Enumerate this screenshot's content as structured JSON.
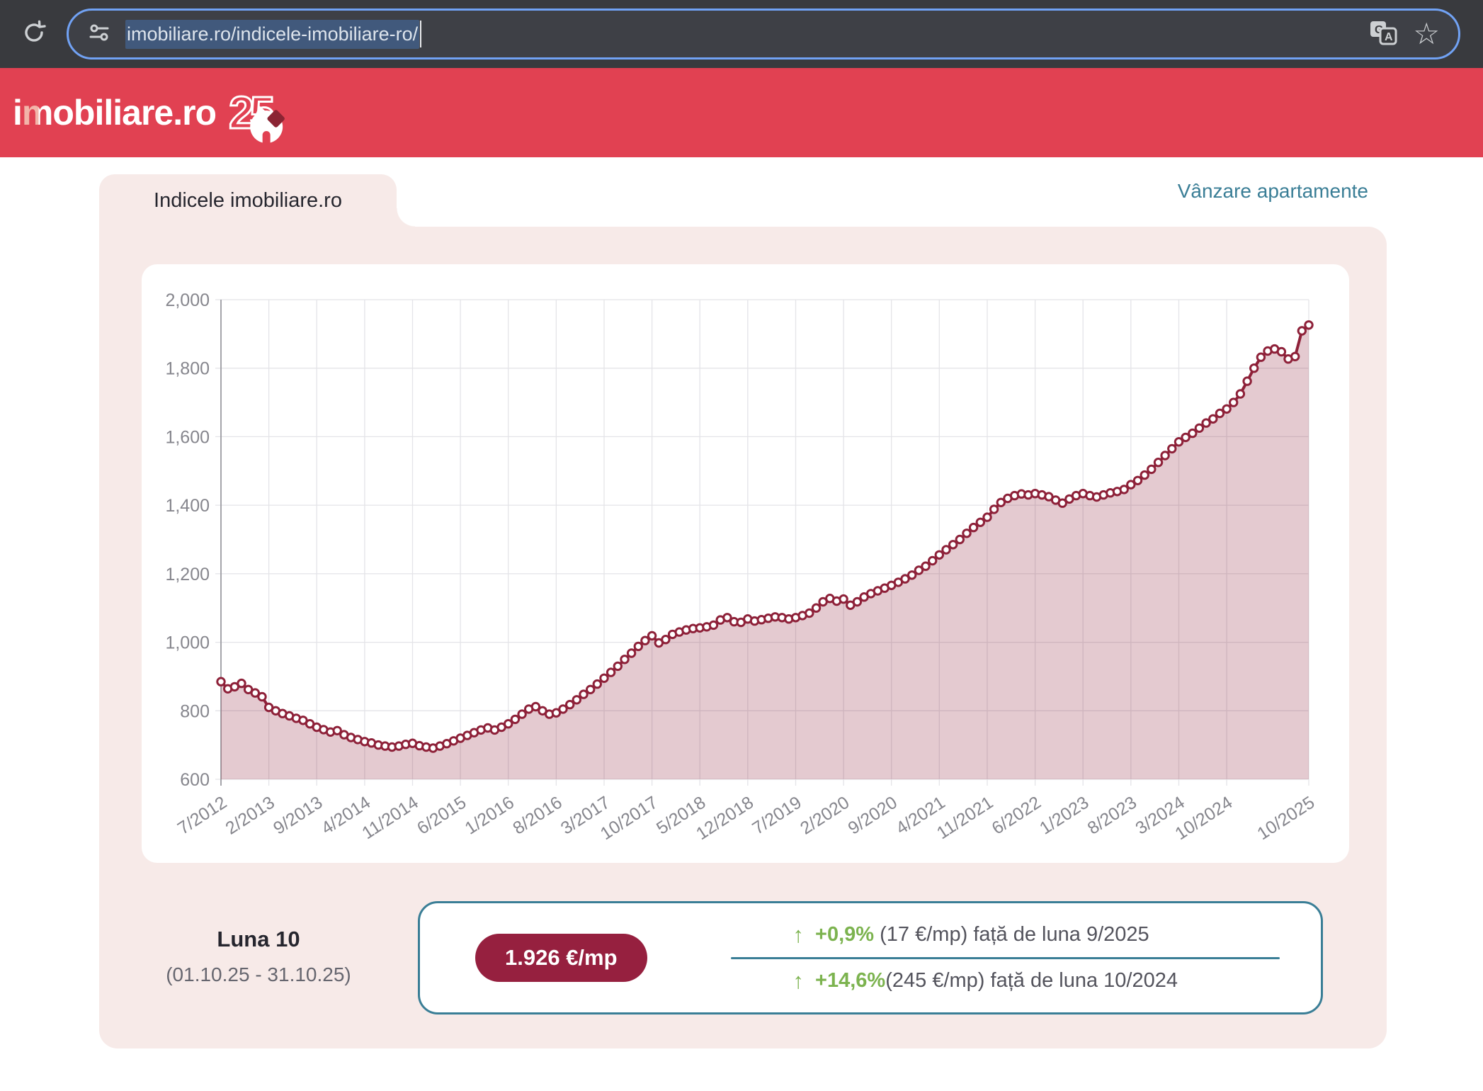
{
  "browser": {
    "url": "imobiliare.ro/indicele-imobiliare-ro/",
    "icons": {
      "bookmark": "☆"
    }
  },
  "header": {
    "logo_prefix": "i",
    "logo_m": "m",
    "logo_suffix": "obiliare.ro",
    "logo_badge": "25",
    "brand_red": "#e14152"
  },
  "nav": {
    "active_tab": "Indicele imobiliare.ro",
    "link": "Vânzare apartamente"
  },
  "chart_data": {
    "type": "area",
    "series_name": "Indicele imobiliare.ro (€/mp)",
    "start_month": "7/2012",
    "end_month": "10/2025",
    "ylim": [
      600,
      2000
    ],
    "y_ticks": [
      600,
      800,
      1000,
      1200,
      1400,
      1600,
      1800,
      2000
    ],
    "x_ticks": [
      {
        "index": 0,
        "label": "7/2012"
      },
      {
        "index": 7,
        "label": "2/2013"
      },
      {
        "index": 14,
        "label": "9/2013"
      },
      {
        "index": 21,
        "label": "4/2014"
      },
      {
        "index": 28,
        "label": "11/2014"
      },
      {
        "index": 35,
        "label": "6/2015"
      },
      {
        "index": 42,
        "label": "1/2016"
      },
      {
        "index": 49,
        "label": "8/2016"
      },
      {
        "index": 56,
        "label": "3/2017"
      },
      {
        "index": 63,
        "label": "10/2017"
      },
      {
        "index": 70,
        "label": "5/2018"
      },
      {
        "index": 77,
        "label": "12/2018"
      },
      {
        "index": 84,
        "label": "7/2019"
      },
      {
        "index": 91,
        "label": "2/2020"
      },
      {
        "index": 98,
        "label": "9/2020"
      },
      {
        "index": 105,
        "label": "4/2021"
      },
      {
        "index": 112,
        "label": "11/2021"
      },
      {
        "index": 119,
        "label": "6/2022"
      },
      {
        "index": 126,
        "label": "1/2023"
      },
      {
        "index": 133,
        "label": "8/2023"
      },
      {
        "index": 140,
        "label": "3/2024"
      },
      {
        "index": 147,
        "label": "10/2024"
      },
      {
        "index": 159,
        "label": "10/2025"
      }
    ],
    "values": [
      885,
      864,
      870,
      880,
      862,
      852,
      841,
      810,
      800,
      792,
      785,
      778,
      772,
      762,
      752,
      745,
      738,
      742,
      730,
      722,
      716,
      710,
      706,
      700,
      697,
      694,
      697,
      702,
      705,
      698,
      694,
      691,
      697,
      704,
      712,
      720,
      728,
      736,
      744,
      750,
      744,
      752,
      762,
      775,
      790,
      805,
      812,
      800,
      790,
      794,
      805,
      818,
      832,
      848,
      862,
      878,
      895,
      912,
      930,
      950,
      968,
      988,
      1005,
      1019,
      998,
      1008,
      1023,
      1030,
      1036,
      1040,
      1042,
      1045,
      1050,
      1065,
      1072,
      1060,
      1058,
      1068,
      1062,
      1066,
      1070,
      1074,
      1072,
      1068,
      1072,
      1078,
      1085,
      1100,
      1118,
      1128,
      1120,
      1126,
      1108,
      1118,
      1132,
      1142,
      1150,
      1158,
      1166,
      1175,
      1185,
      1196,
      1210,
      1222,
      1238,
      1255,
      1270,
      1285,
      1300,
      1318,
      1335,
      1350,
      1365,
      1388,
      1408,
      1420,
      1428,
      1433,
      1430,
      1434,
      1430,
      1425,
      1415,
      1406,
      1418,
      1428,
      1434,
      1428,
      1424,
      1430,
      1436,
      1440,
      1446,
      1460,
      1472,
      1488,
      1505,
      1525,
      1545,
      1565,
      1585,
      1598,
      1610,
      1625,
      1640,
      1652,
      1668,
      1681,
      1700,
      1725,
      1762,
      1800,
      1832,
      1850,
      1856,
      1848,
      1827,
      1834,
      1909,
      1926
    ],
    "line_color": "#8e2139",
    "fill_color": "rgba(142,33,57,0.24)",
    "marker_fill": "#ffffff",
    "grid": true,
    "legend": false,
    "axis_label_color": "#86868d",
    "grid_color": "#e4e4e8"
  },
  "summary": {
    "period_label": "Luna 10",
    "period_range": "(01.10.25 - 31.10.25)",
    "price_badge": "1.926 €/mp",
    "stats": [
      {
        "arrow": "↑",
        "percent": "+0,9%",
        "amount": " (17 €/mp) ",
        "rest": "față de luna 9/2025"
      },
      {
        "arrow": "↑",
        "percent": "+14,6%",
        "amount": "(245 €/mp) ",
        "rest": "față de luna 10/2024"
      }
    ]
  },
  "colors": {
    "teal": "#3a7e96",
    "green": "#7cb34f",
    "panel_pink": "#f7eae8",
    "badge_red": "#96203f",
    "line_maroon": "#8e2139",
    "topbar": "#393a3e"
  }
}
